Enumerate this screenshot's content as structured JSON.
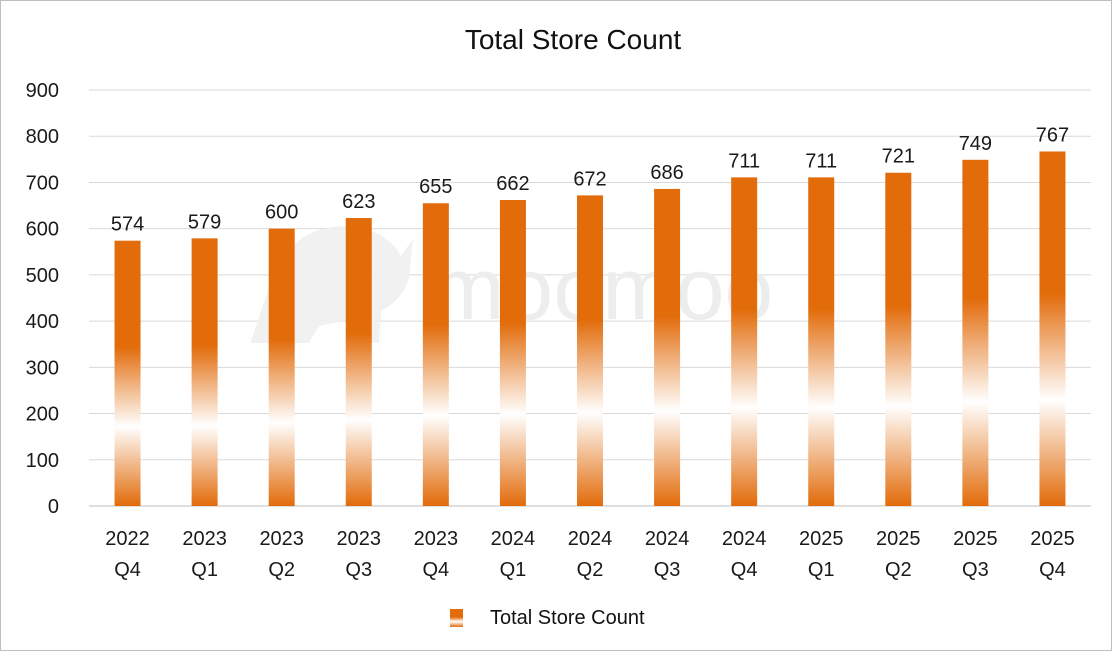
{
  "chart_data": {
    "type": "bar",
    "title": "Total Store Count",
    "categories": [
      [
        "2022",
        "Q4"
      ],
      [
        "2023",
        "Q1"
      ],
      [
        "2023",
        "Q2"
      ],
      [
        "2023",
        "Q3"
      ],
      [
        "2023",
        "Q4"
      ],
      [
        "2024",
        "Q1"
      ],
      [
        "2024",
        "Q2"
      ],
      [
        "2024",
        "Q3"
      ],
      [
        "2024",
        "Q4"
      ],
      [
        "2025",
        "Q1"
      ],
      [
        "2025",
        "Q2"
      ],
      [
        "2025",
        "Q3"
      ],
      [
        "2025",
        "Q4"
      ]
    ],
    "series": [
      {
        "name": "Total Store Count",
        "values": [
          574,
          579,
          600,
          623,
          655,
          662,
          672,
          686,
          711,
          711,
          721,
          749,
          767
        ],
        "color": "#e26b0a"
      }
    ],
    "ylim": [
      0,
      900
    ],
    "yticks": [
      0,
      100,
      200,
      300,
      400,
      500,
      600,
      700,
      800,
      900
    ],
    "grid": true,
    "legend_position": "bottom",
    "data_labels": true
  },
  "watermark": {
    "text": "moomoo"
  }
}
